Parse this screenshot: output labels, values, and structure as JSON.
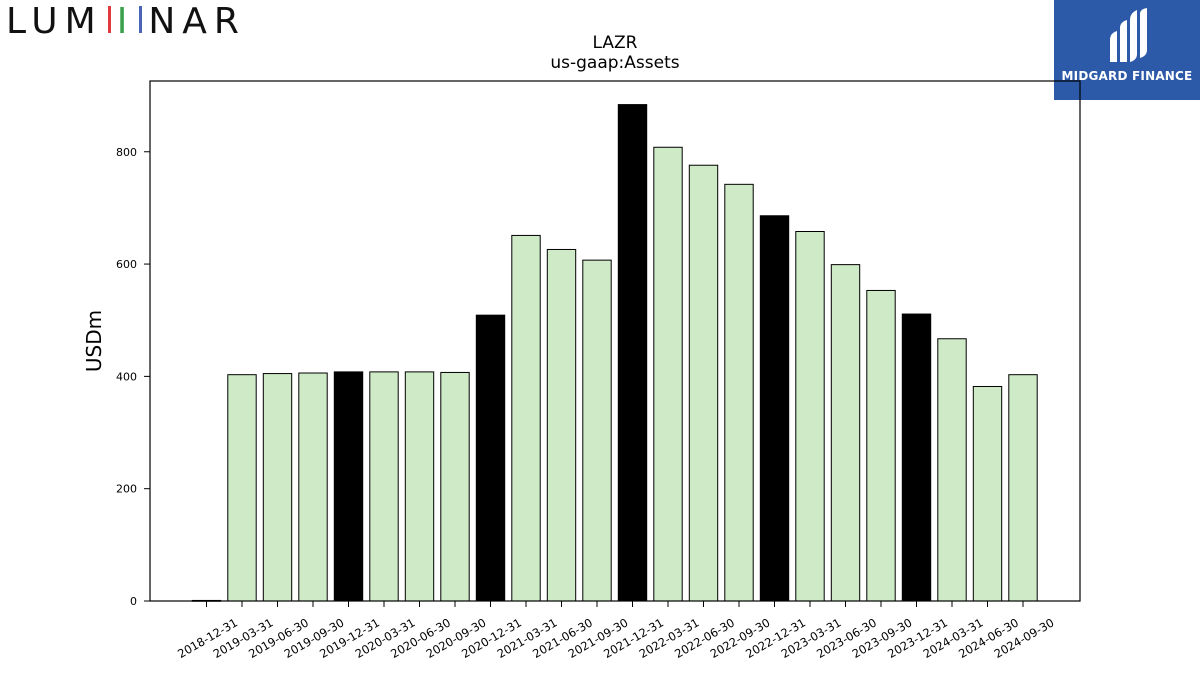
{
  "brand": {
    "logo_text": "LUMINAR"
  },
  "partner": {
    "name": "MIDGARD FINANCE"
  },
  "colors": {
    "regular_bar": "#cfeac7",
    "year_end_bar": "#000000",
    "bar_edge": "#000000"
  },
  "chart_data": {
    "type": "bar",
    "title": "LAZR",
    "subtitle": "us-gaap:Assets",
    "xlabel": "",
    "ylabel": "USDm",
    "ylim": [
      0,
      926
    ],
    "yticks": [
      0,
      200,
      400,
      600,
      800
    ],
    "grid": false,
    "categories": [
      "2018-12-31",
      "2019-03-31",
      "2019-06-30",
      "2019-09-30",
      "2019-12-31",
      "2020-03-31",
      "2020-06-30",
      "2020-09-30",
      "2020-12-31",
      "2021-03-31",
      "2021-06-30",
      "2021-09-30",
      "2021-12-31",
      "2022-03-31",
      "2022-06-30",
      "2022-09-30",
      "2022-12-31",
      "2023-03-31",
      "2023-06-30",
      "2023-09-30",
      "2023-12-31",
      "2024-03-31",
      "2024-06-30",
      "2024-09-30"
    ],
    "values": [
      1,
      403,
      405,
      406,
      408,
      408,
      408,
      407,
      509,
      651,
      626,
      607,
      884,
      808,
      776,
      742,
      686,
      658,
      599,
      553,
      511,
      467,
      382,
      403
    ]
  }
}
